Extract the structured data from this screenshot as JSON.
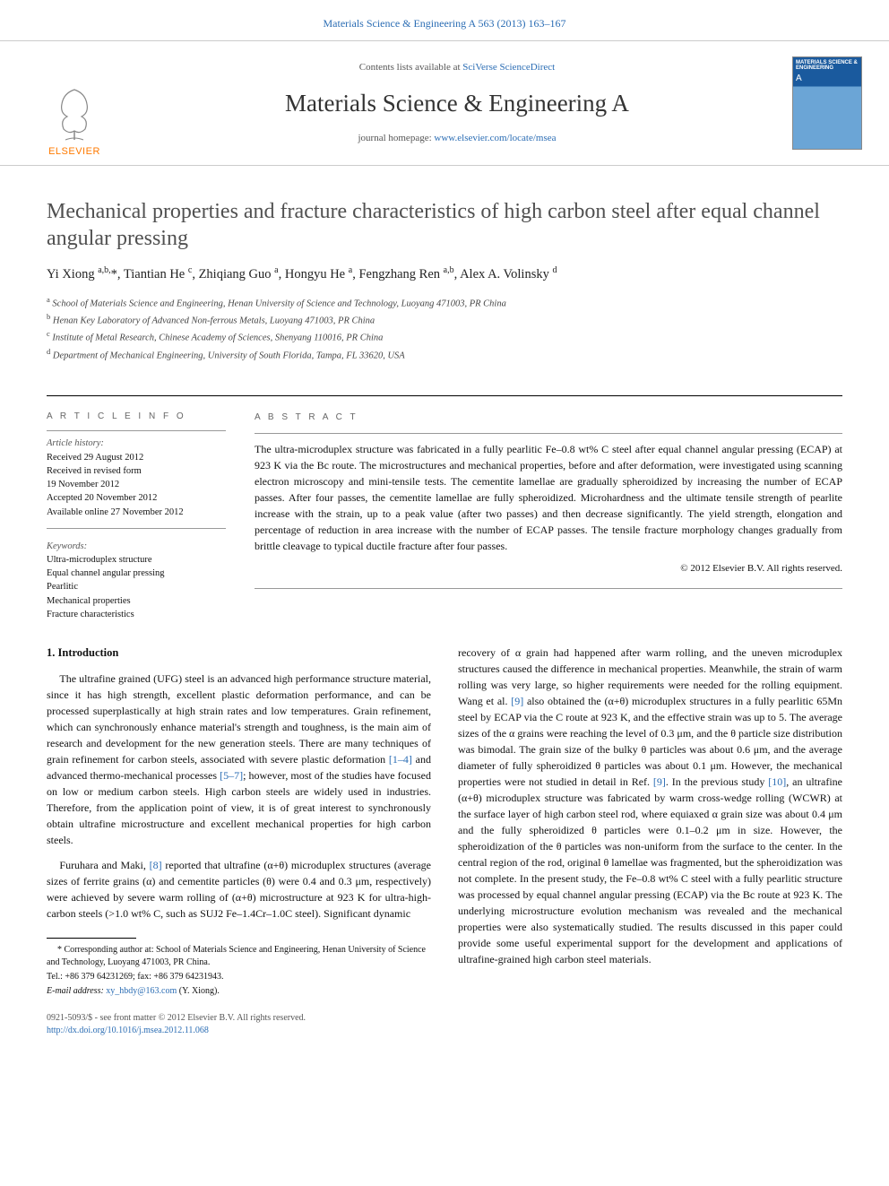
{
  "top_link": {
    "journal": "Materials Science & Engineering A",
    "citation": "563 (2013) 163–167"
  },
  "header": {
    "publisher": "ELSEVIER",
    "contents_prefix": "Contents lists available at ",
    "contents_link": "SciVerse ScienceDirect",
    "journal_title": "Materials Science & Engineering A",
    "homepage_prefix": "journal homepage: ",
    "homepage_link": "www.elsevier.com/locate/msea",
    "cover_label1": "MATERIALS SCIENCE & ENGINEERING",
    "cover_label2": "A"
  },
  "article": {
    "title": "Mechanical properties and fracture characteristics of high carbon steel after equal channel angular pressing",
    "authors_html": "Yi Xiong <sup>a,b,</sup>*, Tiantian He <sup>c</sup>, Zhiqiang Guo <sup>a</sup>, Hongyu He <sup>a</sup>, Fengzhang Ren <sup>a,b</sup>, Alex A. Volinsky <sup>d</sup>",
    "affiliations": [
      {
        "sup": "a",
        "text": "School of Materials Science and Engineering, Henan University of Science and Technology, Luoyang 471003, PR China"
      },
      {
        "sup": "b",
        "text": "Henan Key Laboratory of Advanced Non-ferrous Metals, Luoyang 471003, PR China"
      },
      {
        "sup": "c",
        "text": "Institute of Metal Research, Chinese Academy of Sciences, Shenyang 110016, PR China"
      },
      {
        "sup": "d",
        "text": "Department of Mechanical Engineering, University of South Florida, Tampa, FL 33620, USA"
      }
    ]
  },
  "info": {
    "heading": "A R T I C L E   I N F O",
    "history_label": "Article history:",
    "history": [
      "Received 29 August 2012",
      "Received in revised form",
      "19 November 2012",
      "Accepted 20 November 2012",
      "Available online 27 November 2012"
    ],
    "keywords_label": "Keywords:",
    "keywords": [
      "Ultra-microduplex structure",
      "Equal channel angular pressing",
      "Pearlitic",
      "Mechanical properties",
      "Fracture characteristics"
    ]
  },
  "abstract": {
    "heading": "A B S T R A C T",
    "text": "The ultra-microduplex structure was fabricated in a fully pearlitic Fe–0.8 wt% C steel after equal channel angular pressing (ECAP) at 923 K via the Bc route. The microstructures and mechanical properties, before and after deformation, were investigated using scanning electron microscopy and mini-tensile tests. The cementite lamellae are gradually spheroidized by increasing the number of ECAP passes. After four passes, the cementite lamellae are fully spheroidized. Microhardness and the ultimate tensile strength of pearlite increase with the strain, up to a peak value (after two passes) and then decrease significantly. The yield strength, elongation and percentage of reduction in area increase with the number of ECAP passes. The tensile fracture morphology changes gradually from brittle cleavage to typical ductile fracture after four passes.",
    "copyright": "© 2012 Elsevier B.V. All rights reserved."
  },
  "body": {
    "section_heading": "1.  Introduction",
    "col1_p1": "The ultrafine grained (UFG) steel is an advanced high performance structure material, since it has high strength, excellent plastic deformation performance, and can be processed superplastically at high strain rates and low temperatures. Grain refinement, which can synchronously enhance material's strength and toughness, is the main aim of research and development for the new generation steels. There are many techniques of grain refinement for carbon steels, associated with severe plastic deformation ",
    "col1_ref1": "[1–4]",
    "col1_p1b": " and advanced thermo-mechanical processes ",
    "col1_ref2": "[5–7]",
    "col1_p1c": "; however, most of the studies have focused on low or medium carbon steels. High carbon steels are widely used in industries. Therefore, from the application point of view, it is of great interest to synchronously obtain ultrafine microstructure and excellent mechanical properties for high carbon steels.",
    "col1_p2a": "Furuhara and Maki, ",
    "col1_ref3": "[8]",
    "col1_p2b": " reported that ultrafine (α+θ) microduplex structures (average sizes of ferrite grains (α) and cementite particles (θ) were 0.4 and 0.3 μm, respectively) were achieved by severe warm rolling of (α+θ) microstructure at 923 K for ultra-high-carbon steels (>1.0 wt% C, such as SUJ2 Fe–1.4Cr–1.0C steel). Significant dynamic",
    "col2_p1a": "recovery of α grain had happened after warm rolling, and the uneven microduplex structures caused the difference in mechanical properties. Meanwhile, the strain of warm rolling was very large, so higher requirements were needed for the rolling equipment. Wang et al. ",
    "col2_ref1": "[9]",
    "col2_p1b": " also obtained the (α+θ) microduplex structures in a fully pearlitic 65Mn steel by ECAP via the C route at 923 K, and the effective strain was up to 5. The average sizes of the α grains were reaching the level of 0.3 μm, and the θ particle size distribution was bimodal. The grain size of the bulky θ particles was about 0.6 μm, and the average diameter of fully spheroidized θ particles was about 0.1 μm. However, the mechanical properties were not studied in detail in Ref. ",
    "col2_ref2": "[9]",
    "col2_p1c": ". In the previous study ",
    "col2_ref3": "[10]",
    "col2_p1d": ", an ultrafine (α+θ) microduplex structure was fabricated by warm cross-wedge rolling (WCWR) at the surface layer of high carbon steel rod, where equiaxed α grain size was about 0.4 μm and the fully spheroidized θ particles were 0.1–0.2 μm in size. However, the spheroidization of the θ particles was non-uniform from the surface to the center. In the central region of the rod, original θ lamellae was fragmented, but the spheroidization was not complete. In the present study, the Fe–0.8 wt% C steel with a fully pearlitic structure was processed by equal channel angular pressing (ECAP) via the Bc route at 923 K. The underlying microstructure evolution mechanism was revealed and the mechanical properties were also systematically studied. The results discussed in this paper could provide some useful experimental support for the development and applications of ultrafine-grained high carbon steel materials."
  },
  "footnotes": {
    "corr": "* Corresponding author at: School of Materials Science and Engineering, Henan University of Science and Technology, Luoyang 471003, PR China.",
    "tel": "Tel.: +86 379 64231269; fax: +86 379 64231943.",
    "email_label": "E-mail address: ",
    "email": "xy_hbdy@163.com",
    "email_suffix": " (Y. Xiong)."
  },
  "footer": {
    "issn": "0921-5093/$ - see front matter © 2012 Elsevier B.V. All rights reserved.",
    "doi": "http://dx.doi.org/10.1016/j.msea.2012.11.068"
  },
  "colors": {
    "link": "#2b6db4",
    "publisher_orange": "#ff7a00",
    "cover_top": "#1a5a9e",
    "cover_bottom": "#6ba5d6"
  }
}
